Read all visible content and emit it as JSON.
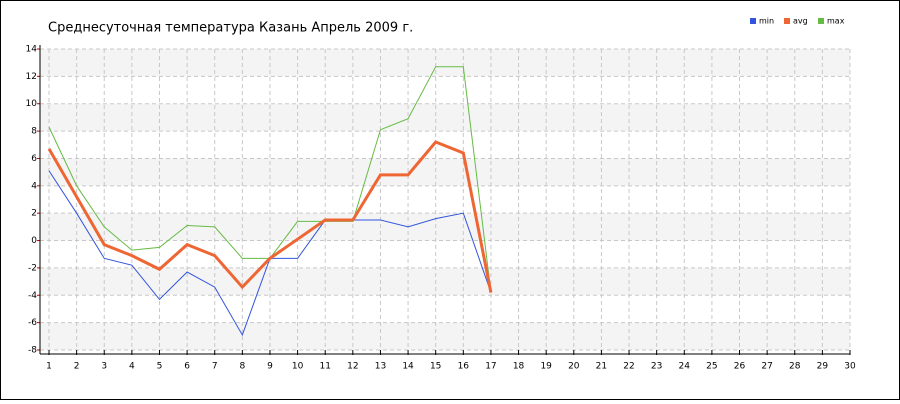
{
  "chart_data": {
    "type": "line",
    "title": "Среднесуточная температура Казань  Апрель 2009 г.",
    "x": [
      1,
      2,
      3,
      4,
      5,
      6,
      7,
      8,
      9,
      10,
      11,
      12,
      13,
      14,
      15,
      16,
      17
    ],
    "series": [
      {
        "name": "min",
        "color": "#3355dd",
        "values": [
          5.1,
          2.0,
          -1.3,
          -1.8,
          -4.3,
          -2.3,
          -3.4,
          -6.9,
          -1.3,
          -1.3,
          1.5,
          1.5,
          1.5,
          1.0,
          1.6,
          2.0,
          -3.8
        ]
      },
      {
        "name": "avg",
        "color": "#ee6633",
        "values": [
          6.7,
          3.2,
          -0.3,
          -1.1,
          -2.1,
          -0.3,
          -1.1,
          -3.4,
          -1.3,
          0.1,
          1.5,
          1.5,
          4.8,
          4.8,
          7.2,
          6.4,
          -3.8
        ]
      },
      {
        "name": "max",
        "color": "#66bb44",
        "values": [
          8.3,
          4.0,
          1.0,
          -0.7,
          -0.5,
          1.1,
          1.0,
          -1.3,
          -1.3,
          1.4,
          1.4,
          1.4,
          8.1,
          8.9,
          12.7,
          12.7,
          -3.8
        ]
      }
    ],
    "xlim": [
      1,
      30
    ],
    "xticks": [
      1,
      2,
      3,
      4,
      5,
      6,
      7,
      8,
      9,
      10,
      11,
      12,
      13,
      14,
      15,
      16,
      17,
      18,
      19,
      20,
      21,
      22,
      23,
      24,
      25,
      26,
      27,
      28,
      29,
      30
    ],
    "ylim": [
      -8,
      14
    ],
    "yticks": [
      -8,
      -6,
      -4,
      -2,
      0,
      2,
      4,
      6,
      8,
      10,
      12,
      14
    ],
    "grid": true,
    "legend": "top-right"
  }
}
